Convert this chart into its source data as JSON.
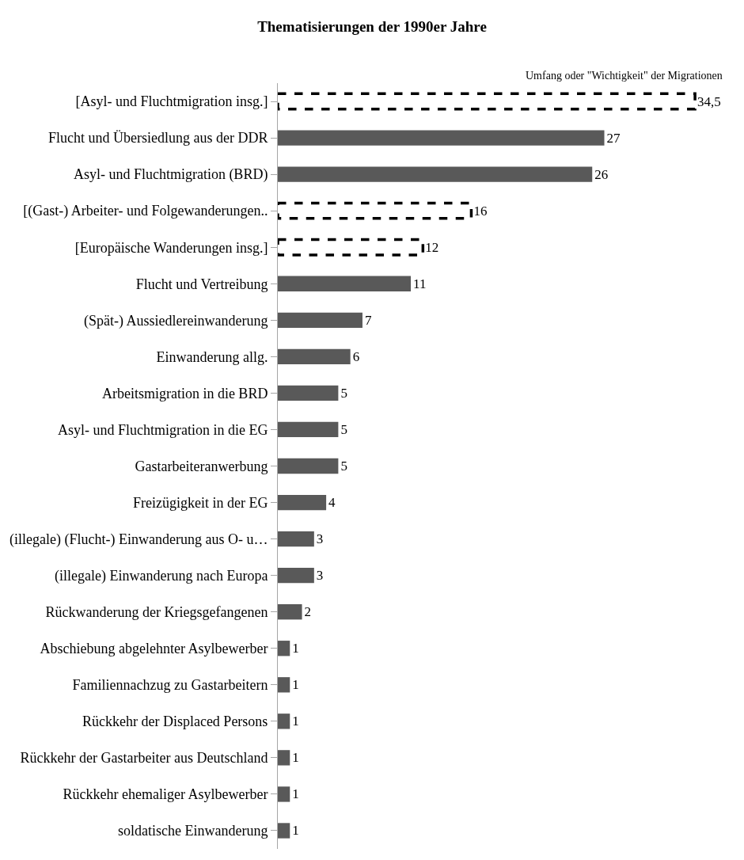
{
  "chart_data": {
    "type": "bar",
    "orientation": "horizontal",
    "title": "Thematisierungen der 1990er Jahre",
    "xlabel": "Umfang oder \"Wichtigkeit\" der Migrationen",
    "categories": [
      "[Asyl- und Fluchtmigration insg.]",
      "Flucht und Übersiedlung aus der DDR",
      "Asyl- und Fluchtmigration (BRD)",
      "[(Gast-) Arbeiter- und Folgewanderungen..",
      "[Europäische Wanderungen insg.]",
      "Flucht und Vertreibung",
      "(Spät-) Aussiedlereinwanderung",
      "Einwanderung allg.",
      "Arbeitsmigration in die BRD",
      "Asyl- und Fluchtmigration in die EG",
      "Gastarbeiteranwerbung",
      "Freizügigkeit in der EG",
      "(illegale) (Flucht-) Einwanderung aus O- u…",
      "(illegale) Einwanderung nach Europa",
      "Rückwanderung der Kriegsgefangenen",
      "Abschiebung abgelehnter Asylbewerber",
      "Familiennachzug zu Gastarbeitern",
      "Rückkehr der Displaced Persons",
      "Rückkehr der Gastarbeiter aus Deutschland",
      "Rückkehr ehemaliger Asylbewerber",
      "soldatische Einwanderung"
    ],
    "series": [
      {
        "color": "#000000",
        "line_style": "dashed",
        "values": [
          34.5,
          null,
          null,
          16,
          12,
          null,
          null,
          null,
          null,
          null,
          null,
          null,
          null,
          null,
          null,
          null,
          null,
          null,
          null,
          null,
          null
        ],
        "value_labels": [
          "34,5",
          null,
          null,
          "16",
          "12",
          null,
          null,
          null,
          null,
          null,
          null,
          null,
          null,
          null,
          null,
          null,
          null,
          null,
          null,
          null,
          null
        ]
      },
      {
        "color": "#595959",
        "values": [
          null,
          27,
          26,
          null,
          null,
          11,
          7,
          6,
          5,
          5,
          5,
          4,
          3,
          3,
          2,
          1,
          1,
          1,
          1,
          1,
          1
        ],
        "value_labels": [
          null,
          "27",
          "26",
          null,
          null,
          "11",
          "7",
          "6",
          "5",
          "5",
          "5",
          "4",
          "3",
          "3",
          "2",
          "1",
          "1",
          "1",
          "1",
          "1",
          "1"
        ]
      }
    ],
    "tick_labels": "y"
  }
}
